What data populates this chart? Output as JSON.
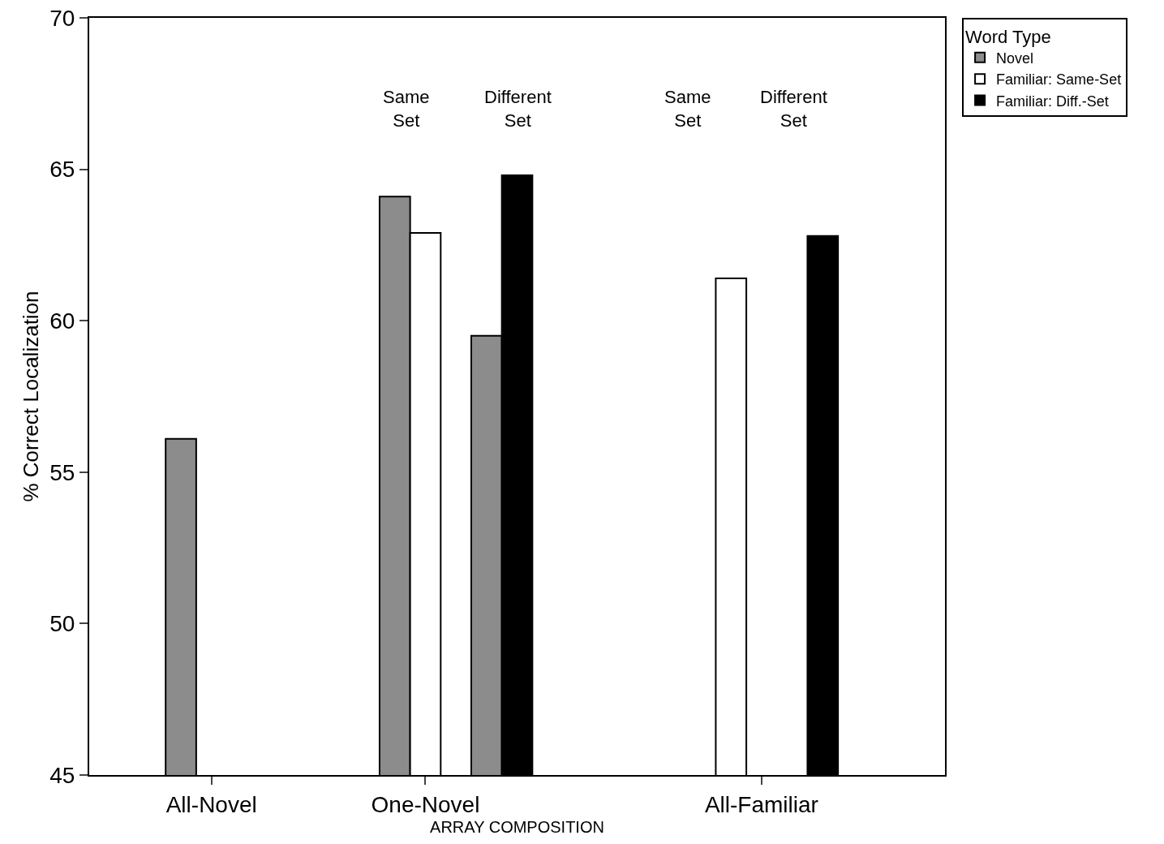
{
  "chart_data": {
    "type": "bar",
    "xlabel": "ARRAY COMPOSITION",
    "ylabel": "% Correct Localization",
    "legend_title": "Word Type",
    "legend": "top right",
    "categories": [
      null,
      null,
      null,
      "All-Novel",
      null,
      null,
      null,
      null,
      null,
      null,
      "One-Novel",
      null,
      null,
      null,
      null,
      null,
      null,
      null,
      null,
      null,
      null,
      "All-Familiar",
      null,
      null,
      null,
      null,
      null,
      null
    ],
    "ylim": [
      45,
      70
    ],
    "yticks": [
      45,
      50,
      55,
      60,
      65,
      70
    ],
    "grid": false,
    "series": [
      {
        "name": "Novel",
        "color": "#8c8c8c",
        "values": [
          null,
          null,
          56.1,
          null,
          null,
          null,
          null,
          null,
          null,
          64.1,
          null,
          null,
          59.5,
          null,
          null,
          null,
          null,
          null,
          null,
          null,
          null,
          null,
          null,
          null,
          null,
          null,
          null,
          null
        ]
      },
      {
        "name": "Familiar: Same-Set",
        "color": "#ffffff",
        "values": [
          null,
          null,
          null,
          null,
          null,
          null,
          null,
          null,
          null,
          null,
          62.9,
          null,
          null,
          null,
          null,
          null,
          null,
          null,
          null,
          null,
          61.4,
          null,
          null,
          null,
          null,
          null,
          null,
          null
        ]
      },
      {
        "name": "Familiar: Diff.-Set",
        "color": "#000000",
        "values": [
          null,
          null,
          null,
          null,
          null,
          null,
          null,
          null,
          null,
          null,
          null,
          null,
          null,
          64.8,
          null,
          null,
          null,
          null,
          null,
          null,
          null,
          null,
          null,
          62.8,
          null,
          null,
          null,
          null
        ]
      }
    ],
    "annotations": [
      "Same Set",
      "Different Set",
      "Same Set",
      "Different Set"
    ]
  }
}
